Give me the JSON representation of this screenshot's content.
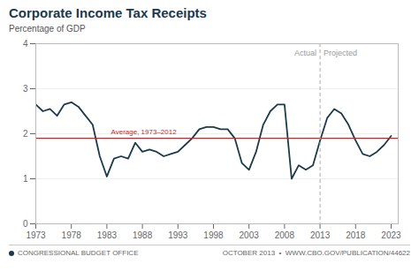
{
  "chart_data": {
    "type": "line",
    "title": "Corporate Income Tax Receipts",
    "subtitle": "Percentage of GDP",
    "x": [
      1973,
      1974,
      1975,
      1976,
      1977,
      1978,
      1979,
      1980,
      1981,
      1982,
      1983,
      1984,
      1985,
      1986,
      1987,
      1988,
      1989,
      1990,
      1991,
      1992,
      1993,
      1994,
      1995,
      1996,
      1997,
      1998,
      1999,
      2000,
      2001,
      2002,
      2003,
      2004,
      2005,
      2006,
      2007,
      2008,
      2009,
      2010,
      2011,
      2012,
      2013,
      2014,
      2015,
      2016,
      2017,
      2018,
      2019,
      2020,
      2021,
      2022,
      2023
    ],
    "values": [
      2.65,
      2.5,
      2.55,
      2.4,
      2.65,
      2.7,
      2.6,
      2.4,
      2.2,
      1.5,
      1.05,
      1.45,
      1.5,
      1.45,
      1.8,
      1.6,
      1.65,
      1.6,
      1.5,
      1.55,
      1.6,
      1.75,
      1.9,
      2.1,
      2.15,
      2.15,
      2.1,
      2.1,
      1.9,
      1.35,
      1.2,
      1.6,
      2.2,
      2.5,
      2.65,
      2.65,
      1.0,
      1.3,
      1.2,
      1.3,
      1.85,
      2.35,
      2.55,
      2.45,
      2.2,
      1.85,
      1.55,
      1.5,
      1.6,
      1.75,
      1.95
    ],
    "color": "#1b3a4b",
    "xlim": [
      1973,
      2024
    ],
    "xticks": [
      1973,
      1978,
      1983,
      1988,
      1993,
      1998,
      2003,
      2008,
      2013,
      2018,
      2023
    ],
    "ylim": [
      0,
      4
    ],
    "yticks": [
      0,
      1,
      2,
      3,
      4
    ],
    "grid": true,
    "reference_lines": [
      {
        "axis": "y",
        "value": 1.9,
        "label": "Average, 1973–2012",
        "color": "#cc2222"
      },
      {
        "axis": "x",
        "value": 2013,
        "color": "#aaaaaa",
        "line_style": "dashed",
        "labels": [
          "Actual",
          "Projected"
        ]
      }
    ],
    "footer": [
      "CONGRESSIONAL BUDGET OFFICE",
      "OCTOBER 2013  •  WWW.CBO.GOV/PUBLICATION/44622"
    ]
  }
}
